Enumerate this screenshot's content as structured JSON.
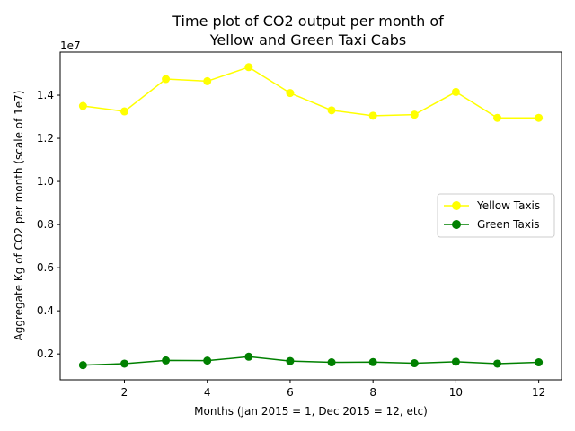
{
  "chart_data": {
    "type": "line",
    "title_lines": [
      "Time plot of CO2 output per month of",
      "Yellow and Green Taxi Cabs"
    ],
    "xlabel": "Months (Jan 2015 = 1, Dec 2015 = 12, etc)",
    "ylabel": "Aggregate Kg of CO2 per month (scale of 1e7)",
    "y_offset_label": "1e7",
    "x": [
      1,
      2,
      3,
      4,
      5,
      6,
      7,
      8,
      9,
      10,
      11,
      12
    ],
    "xlim": [
      0.45,
      12.55
    ],
    "ylim": [
      0.08,
      1.6
    ],
    "x_ticks": [
      2,
      4,
      6,
      8,
      10,
      12
    ],
    "y_ticks": [
      0.2,
      0.4,
      0.6,
      0.8,
      1.0,
      1.2,
      1.4
    ],
    "y_tick_labels": [
      "0.2",
      "0.4",
      "0.6",
      "0.8",
      "1.0",
      "1.2",
      "1.4"
    ],
    "grid": false,
    "legend_position": "center-right",
    "series": [
      {
        "name": "Yellow Taxis",
        "color": "#ffff00",
        "marker": "circle",
        "values": [
          1.35,
          1.325,
          1.475,
          1.465,
          1.53,
          1.41,
          1.33,
          1.305,
          1.31,
          1.415,
          1.295,
          1.295
        ]
      },
      {
        "name": "Green Taxis",
        "color": "#008000",
        "marker": "circle",
        "values": [
          0.148,
          0.155,
          0.17,
          0.169,
          0.187,
          0.167,
          0.161,
          0.162,
          0.157,
          0.164,
          0.155,
          0.161
        ]
      }
    ]
  }
}
